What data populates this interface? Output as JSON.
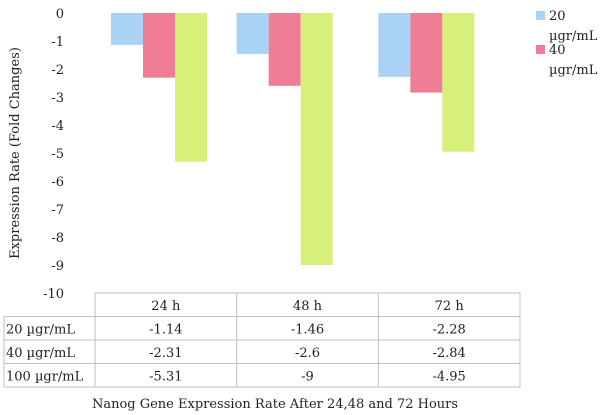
{
  "chart_data": {
    "type": "bar",
    "title": "",
    "caption": "Nanog Gene Expression Rate After 24,48 and 72 Hours",
    "ylabel": "Expression Rate (Fold Changes)",
    "xlabel": "",
    "ylim": [
      -10,
      0
    ],
    "yticks": [
      0,
      -1,
      -2,
      -3,
      -4,
      -5,
      -6,
      -7,
      -8,
      -9,
      -10
    ],
    "categories": [
      "24 h",
      "48 h",
      "72 h"
    ],
    "series": [
      {
        "name": "20 µgr/mL",
        "legend_lines": [
          "20",
          "µgr/mL"
        ],
        "color": "#a9d2f5",
        "values": [
          -1.14,
          -1.46,
          -2.28
        ]
      },
      {
        "name": "40 µgr/mL",
        "legend_lines": [
          "40",
          "µgr/mL"
        ],
        "color": "#ee7d95",
        "values": [
          -2.31,
          -2.6,
          -2.84
        ]
      },
      {
        "name": "100 µgr/mL",
        "legend_lines": [],
        "color": "#d6f07a",
        "values": [
          -5.31,
          -9,
          -4.95
        ]
      }
    ],
    "table": {
      "rows": [
        {
          "label": "20 µgr/mL",
          "cells": [
            "-1.14",
            "-1.46",
            "-2.28"
          ]
        },
        {
          "label": "40 µgr/mL",
          "cells": [
            "-2.31",
            "-2.6",
            "-2.84"
          ]
        },
        {
          "label": "100 µgr/mL",
          "cells": [
            "-5.31",
            "-9",
            "-4.95"
          ]
        }
      ]
    },
    "legend_position": "right",
    "grid": false
  }
}
